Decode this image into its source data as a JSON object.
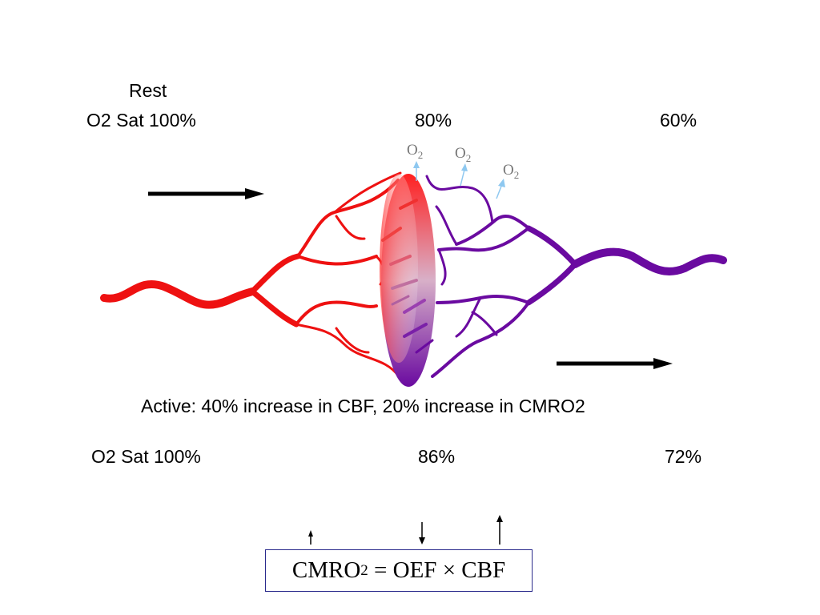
{
  "rest": {
    "label": "Rest",
    "o2_sat_label": "O2 Sat  100%",
    "capillary_sat": "80%",
    "venous_sat": "60%"
  },
  "o2_marker": {
    "main": "O",
    "sub": "2"
  },
  "active": {
    "caption": "Active: 40% increase in CBF, 20% increase in CMRO2",
    "o2_sat_label": "O2 Sat  100%",
    "capillary_sat": "86%",
    "venous_sat": "72%"
  },
  "equation": {
    "cmro": "CMRO",
    "cmro_sub": "2",
    "rest": " = OEF × CBF"
  },
  "colors": {
    "arterial": "#ee1111",
    "venous": "#6a0aa0",
    "o2_arrow": "#8ec8f0",
    "box_border": "#2b2b8c"
  }
}
